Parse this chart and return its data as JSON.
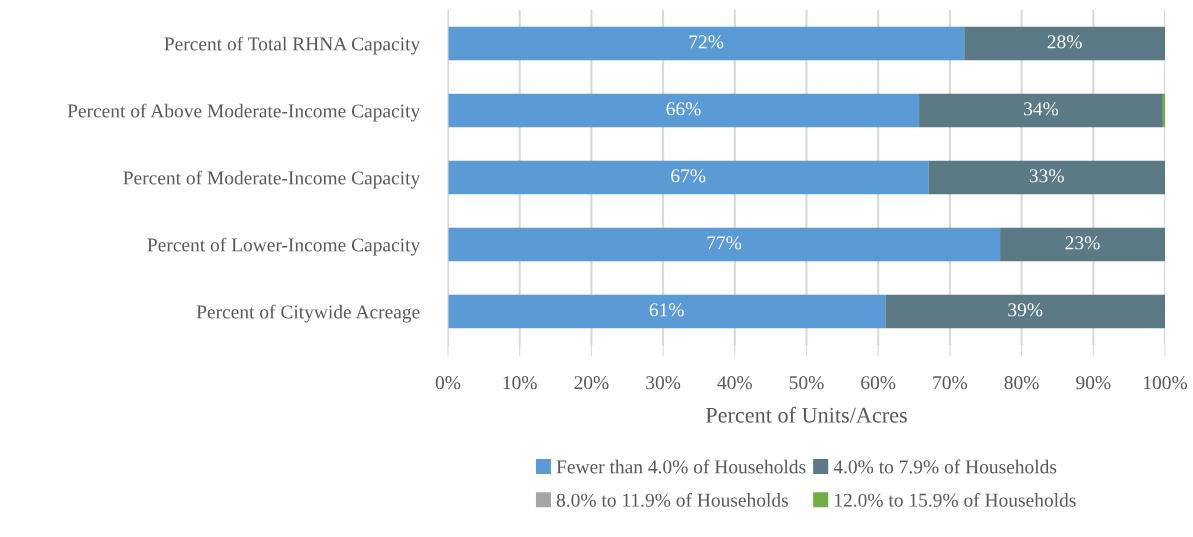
{
  "chart_data": {
    "type": "bar",
    "orientation": "horizontal",
    "stacked": true,
    "categories": [
      "Percent of Total RHNA Capacity",
      "Percent of Above Moderate-Income Capacity",
      "Percent of Moderate-Income Capacity",
      "Percent of Lower-Income Capacity",
      "Percent of Citywide Acreage"
    ],
    "series": [
      {
        "name": "Fewer than 4.0% of Households",
        "color": "#5b9bd5",
        "values": [
          72,
          65.7,
          67,
          77,
          61
        ],
        "value_labels": [
          "72%",
          "66%",
          "67%",
          "77%",
          "61%"
        ]
      },
      {
        "name": "4.0% to 7.9% of Households",
        "color": "#5b7a85",
        "values": [
          28,
          34.0,
          33,
          23,
          39
        ],
        "value_labels": [
          "28%",
          "34%",
          "33%",
          "23%",
          "39%"
        ]
      },
      {
        "name": "8.0% to 11.9% of Households",
        "color": "#a5a5a5",
        "values": [
          0,
          0,
          0,
          0,
          0
        ]
      },
      {
        "name": "12.0% to 15.9% of Households",
        "color": "#70ad47",
        "values": [
          0,
          0.3,
          0,
          0,
          0
        ]
      }
    ],
    "xlabel": "Percent of Units/Acres",
    "xlim": [
      0,
      100
    ],
    "xticks": [
      {
        "value": 0,
        "label": "0%"
      },
      {
        "value": 10,
        "label": "10%"
      },
      {
        "value": 20,
        "label": "20%"
      },
      {
        "value": 30,
        "label": "30%"
      },
      {
        "value": 40,
        "label": "40%"
      },
      {
        "value": 50,
        "label": "50%"
      },
      {
        "value": 60,
        "label": "60%"
      },
      {
        "value": 70,
        "label": "70%"
      },
      {
        "value": 80,
        "label": "80%"
      },
      {
        "value": 90,
        "label": "90%"
      },
      {
        "value": 100,
        "label": "100%"
      }
    ],
    "grid": "x",
    "legend": "bottom"
  }
}
